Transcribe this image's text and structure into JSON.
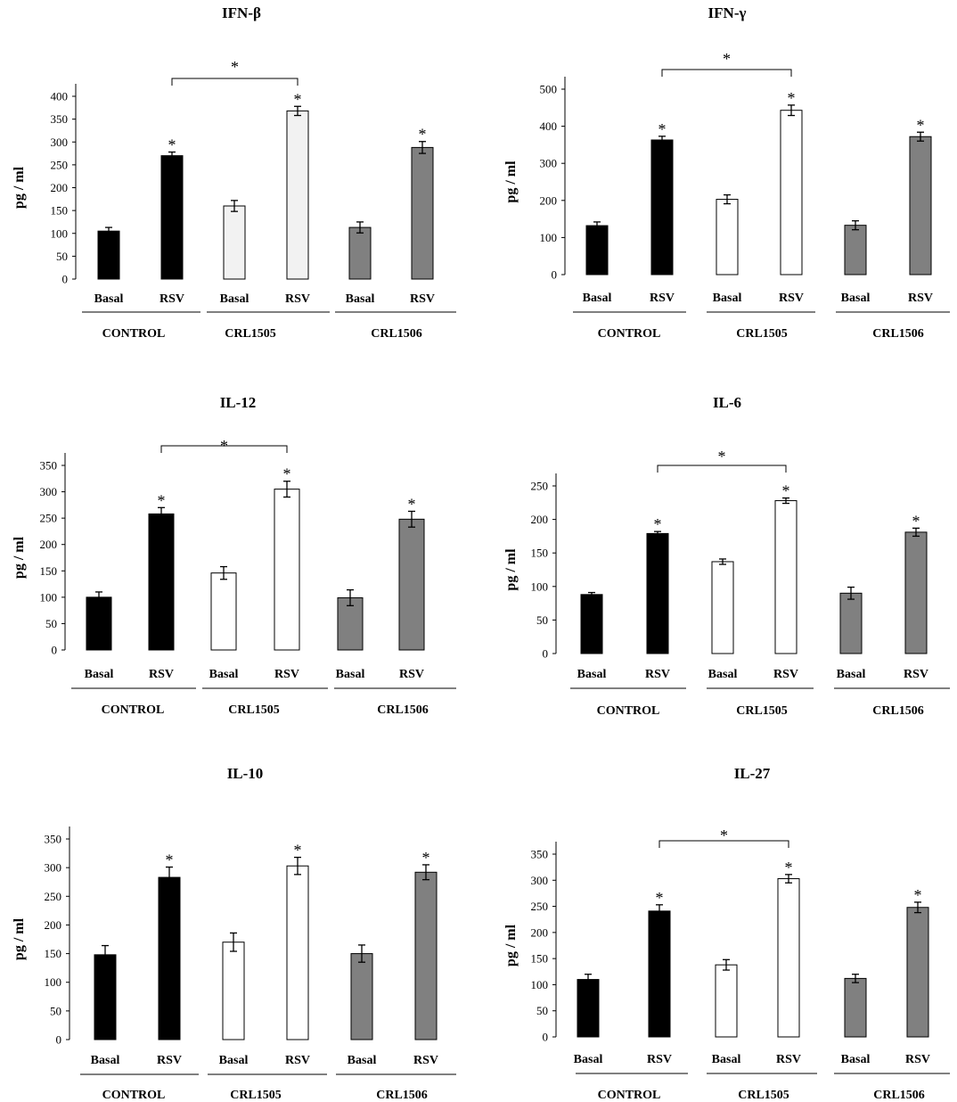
{
  "figure": {
    "background": "#ffffff"
  },
  "colors": {
    "control": "#000000",
    "crl1505": "#ffffff",
    "crl1506": "#808080",
    "crl1505_ifnb": "#f2f2f2"
  },
  "chart_data": [
    {
      "type": "bar",
      "title": "IFN-β",
      "ylabel": "pg / ml",
      "ylim": [
        0,
        400
      ],
      "yticks": [
        0,
        50,
        100,
        150,
        200,
        250,
        300,
        350,
        400
      ],
      "categories": [
        "Basal",
        "RSV",
        "Basal",
        "RSV",
        "Basal",
        "RSV"
      ],
      "groups": [
        "CONTROL",
        "CRL1505",
        "CRL1506"
      ],
      "values": [
        105,
        270,
        160,
        368,
        113,
        288
      ],
      "errors": [
        8,
        8,
        12,
        10,
        12,
        13
      ],
      "fill_keys": [
        "control",
        "control",
        "crl1505_ifnb",
        "crl1505_ifnb",
        "crl1506",
        "crl1506"
      ],
      "significance": [
        "",
        "*",
        "",
        "*",
        "",
        "*"
      ],
      "bracket_label": "*"
    },
    {
      "type": "bar",
      "title": "IFN-γ",
      "ylabel": "pg / ml",
      "ylim": [
        0,
        500
      ],
      "yticks": [
        0,
        100,
        200,
        300,
        400,
        500
      ],
      "categories": [
        "Basal",
        "RSV",
        "Basal",
        "RSV",
        "Basal",
        "RSV"
      ],
      "groups": [
        "CONTROL",
        "CRL1505",
        "CRL1506"
      ],
      "values": [
        132,
        363,
        203,
        443,
        133,
        372
      ],
      "errors": [
        10,
        10,
        12,
        14,
        12,
        12
      ],
      "fill_keys": [
        "control",
        "control",
        "crl1505",
        "crl1505",
        "crl1506",
        "crl1506"
      ],
      "significance": [
        "",
        "*",
        "",
        "*",
        "",
        "*"
      ],
      "bracket_label": "*"
    },
    {
      "type": "bar",
      "title": "IL-12",
      "ylabel": "pg / ml",
      "ylim": [
        0,
        350
      ],
      "yticks": [
        0,
        50,
        100,
        150,
        200,
        250,
        300,
        350
      ],
      "categories": [
        "Basal",
        "RSV",
        "Basal",
        "RSV",
        "Basal",
        "RSV"
      ],
      "groups": [
        "CONTROL",
        "CRL1505",
        "CRL1506"
      ],
      "values": [
        100,
        258,
        146,
        305,
        99,
        248
      ],
      "errors": [
        10,
        12,
        12,
        15,
        15,
        15
      ],
      "fill_keys": [
        "control",
        "control",
        "crl1505",
        "crl1505",
        "crl1506",
        "crl1506"
      ],
      "significance": [
        "",
        "*",
        "",
        "*",
        "",
        "*"
      ],
      "bracket_label": "*"
    },
    {
      "type": "bar",
      "title": "IL-6",
      "ylabel": "pg / ml",
      "ylim": [
        0,
        250
      ],
      "yticks": [
        0,
        50,
        100,
        150,
        200,
        250
      ],
      "categories": [
        "Basal",
        "RSV",
        "Basal",
        "RSV",
        "Basal",
        "RSV"
      ],
      "groups": [
        "CONTROL",
        "CRL1505",
        "CRL1506"
      ],
      "values": [
        88,
        179,
        137,
        228,
        90,
        181
      ],
      "errors": [
        3,
        3,
        4,
        4,
        9,
        6
      ],
      "fill_keys": [
        "control",
        "control",
        "crl1505",
        "crl1505",
        "crl1506",
        "crl1506"
      ],
      "significance": [
        "",
        "*",
        "",
        "*",
        "",
        "*"
      ],
      "bracket_label": "*"
    },
    {
      "type": "bar",
      "title": "IL-10",
      "ylabel": "pg / ml",
      "ylim": [
        0,
        350
      ],
      "yticks": [
        0,
        50,
        100,
        150,
        200,
        250,
        300,
        350
      ],
      "categories": [
        "Basal",
        "RSV",
        "Basal",
        "RSV",
        "Basal",
        "RSV"
      ],
      "groups": [
        "CONTROL",
        "CRL1505",
        "CRL1506"
      ],
      "values": [
        148,
        283,
        170,
        303,
        150,
        292
      ],
      "errors": [
        16,
        18,
        16,
        15,
        15,
        13
      ],
      "fill_keys": [
        "control",
        "control",
        "crl1505",
        "crl1505",
        "crl1506",
        "crl1506"
      ],
      "significance": [
        "",
        "*",
        "",
        "*",
        "",
        "*"
      ],
      "bracket_label": ""
    },
    {
      "type": "bar",
      "title": "IL-27",
      "ylabel": "pg / ml",
      "ylim": [
        0,
        350
      ],
      "yticks": [
        0,
        50,
        100,
        150,
        200,
        250,
        300,
        350
      ],
      "categories": [
        "Basal",
        "RSV",
        "Basal",
        "RSV",
        "Basal",
        "RSV"
      ],
      "groups": [
        "CONTROL",
        "CRL1505",
        "CRL1506"
      ],
      "values": [
        110,
        241,
        138,
        303,
        112,
        248
      ],
      "errors": [
        10,
        12,
        10,
        8,
        8,
        10
      ],
      "fill_keys": [
        "control",
        "control",
        "crl1505",
        "crl1505",
        "crl1506",
        "crl1506"
      ],
      "significance": [
        "",
        "*",
        "",
        "*",
        "",
        "*"
      ],
      "bracket_label": "*"
    }
  ]
}
